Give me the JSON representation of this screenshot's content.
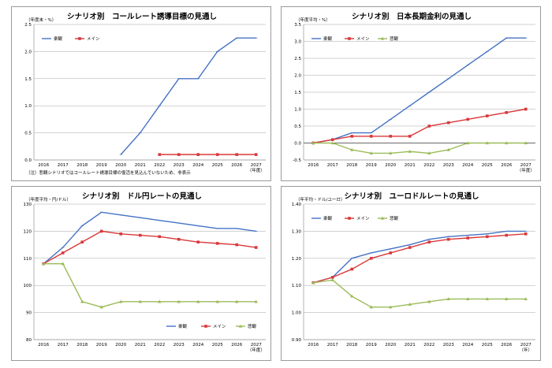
{
  "colors": {
    "optimistic": "#4472c4",
    "main": "#d9383a",
    "pessimistic": "#9bbb59"
  },
  "legend_labels": {
    "optimistic": "楽観",
    "main": "メイン",
    "pessimistic": "悲観"
  },
  "chart_data": [
    {
      "type": "line",
      "title": "シナリオ別　コールレート誘導目標の見通し",
      "unit_label": "（年度末・%）",
      "x_end_label": "（年度）",
      "note": "（注）悲観シナリオではコールレート誘導目標の復活を見込んでいないため、非表示",
      "x": [
        "2016",
        "2017",
        "2018",
        "2019",
        "2020",
        "2021",
        "2022",
        "2023",
        "2024",
        "2025",
        "2026",
        "2027"
      ],
      "yticks": [
        "0.0",
        "0.5",
        "1.0",
        "1.5",
        "2.0",
        "2.5"
      ],
      "ylim": [
        0,
        2.5
      ],
      "legend": [
        "optimistic",
        "main"
      ],
      "legend_position": "top-left",
      "series": [
        {
          "key": "optimistic",
          "marker": "line",
          "values": [
            null,
            null,
            null,
            null,
            0.1,
            0.5,
            1.0,
            1.5,
            1.5,
            2.0,
            2.25,
            2.25
          ]
        },
        {
          "key": "main",
          "marker": "square",
          "values": [
            null,
            null,
            null,
            null,
            null,
            null,
            0.1,
            0.1,
            0.1,
            0.1,
            0.1,
            0.1
          ]
        }
      ]
    },
    {
      "type": "line",
      "title": "シナリオ別　日本長期金利の見通し",
      "unit_label": "（年度平均・%）",
      "x_end_label": "（年度）",
      "x": [
        "2016",
        "2017",
        "2018",
        "2019",
        "2020",
        "2021",
        "2022",
        "2023",
        "2024",
        "2025",
        "2026",
        "2027"
      ],
      "yticks": [
        "-0.5",
        "0.0",
        "0.5",
        "1.0",
        "1.5",
        "2.0",
        "2.5",
        "3.0",
        "3.5"
      ],
      "ylim": [
        -0.5,
        3.5
      ],
      "legend": [
        "optimistic",
        "main",
        "pessimistic"
      ],
      "legend_position": "top-left",
      "series": [
        {
          "key": "optimistic",
          "marker": "line",
          "values": [
            0.0,
            0.1,
            0.3,
            0.3,
            0.7,
            1.1,
            1.5,
            1.9,
            2.3,
            2.7,
            3.1,
            3.1
          ]
        },
        {
          "key": "main",
          "marker": "square",
          "values": [
            0.0,
            0.1,
            0.2,
            0.2,
            0.2,
            0.2,
            0.5,
            0.6,
            0.7,
            0.8,
            0.9,
            1.0
          ]
        },
        {
          "key": "pessimistic",
          "marker": "triangle",
          "values": [
            0.0,
            0.0,
            -0.2,
            -0.3,
            -0.3,
            -0.25,
            -0.3,
            -0.2,
            0.0,
            0.0,
            0.0,
            0.0
          ]
        }
      ]
    },
    {
      "type": "line",
      "title": "シナリオ別　ドル円レートの見通し",
      "unit_label": "（年度平均・円/ドル）",
      "x_end_label": "（年度）",
      "x": [
        "2016",
        "2017",
        "2018",
        "2019",
        "2020",
        "2021",
        "2022",
        "2023",
        "2024",
        "2025",
        "2026",
        "2027"
      ],
      "yticks": [
        "80",
        "90",
        "100",
        "110",
        "120",
        "130"
      ],
      "ylim": [
        80,
        130
      ],
      "legend": [
        "optimistic",
        "main",
        "pessimistic"
      ],
      "legend_position": "bottom-right",
      "series": [
        {
          "key": "optimistic",
          "marker": "line",
          "values": [
            108,
            114,
            122,
            127,
            126,
            125,
            124,
            123,
            122,
            121,
            121,
            120
          ]
        },
        {
          "key": "main",
          "marker": "square",
          "values": [
            108,
            112,
            116,
            120,
            119,
            118.5,
            118,
            117,
            116,
            115.5,
            115,
            114
          ]
        },
        {
          "key": "pessimistic",
          "marker": "triangle",
          "values": [
            108,
            108,
            94,
            92,
            94,
            94,
            94,
            94,
            94,
            94,
            94,
            94
          ]
        }
      ]
    },
    {
      "type": "line",
      "title": "シナリオ別　ユーロドルレートの見通し",
      "unit_label": "（年平均・ドル/ユーロ）",
      "x_end_label": "（年）",
      "x": [
        "2016",
        "2017",
        "2018",
        "2019",
        "2020",
        "2021",
        "2022",
        "2023",
        "2024",
        "2025",
        "2026",
        "2027"
      ],
      "yticks": [
        "0.90",
        "1.00",
        "1.10",
        "1.20",
        "1.30",
        "1.40"
      ],
      "ylim": [
        0.9,
        1.4
      ],
      "legend": [
        "optimistic",
        "main",
        "pessimistic"
      ],
      "legend_position": "top-left",
      "series": [
        {
          "key": "optimistic",
          "marker": "line",
          "values": [
            1.11,
            1.13,
            1.2,
            1.22,
            1.235,
            1.25,
            1.27,
            1.28,
            1.285,
            1.29,
            1.3,
            1.3
          ]
        },
        {
          "key": "main",
          "marker": "square",
          "values": [
            1.11,
            1.13,
            1.16,
            1.2,
            1.22,
            1.24,
            1.26,
            1.27,
            1.275,
            1.28,
            1.285,
            1.29
          ]
        },
        {
          "key": "pessimistic",
          "marker": "triangle",
          "values": [
            1.11,
            1.12,
            1.06,
            1.02,
            1.02,
            1.03,
            1.04,
            1.05,
            1.05,
            1.05,
            1.05,
            1.05
          ]
        }
      ]
    }
  ]
}
